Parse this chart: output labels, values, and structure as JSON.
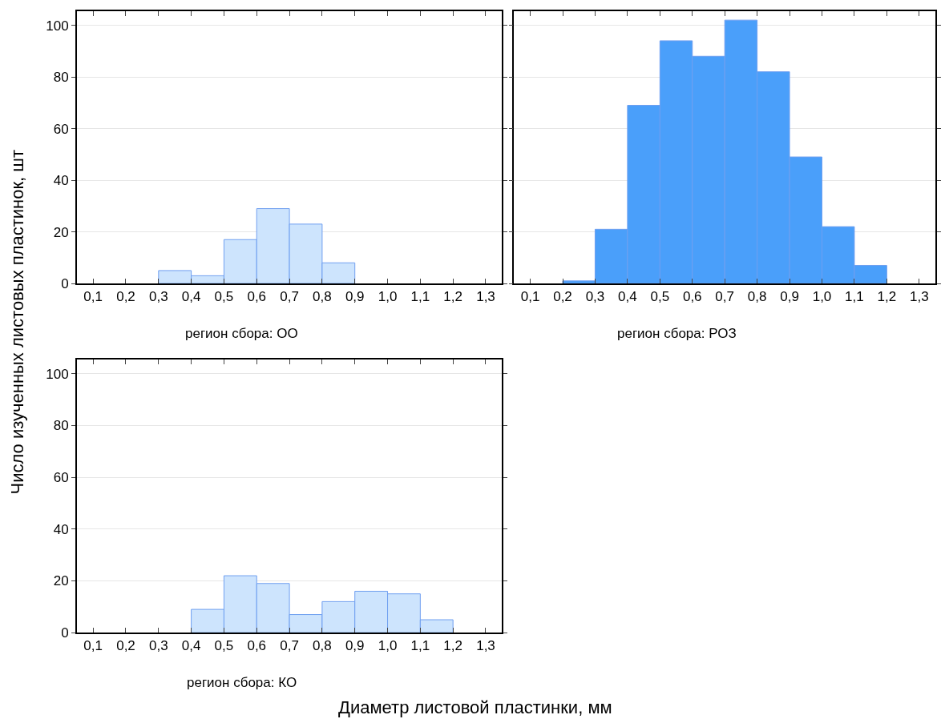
{
  "chart_data": [
    {
      "type": "histogram",
      "title": "регион сбора: ОО",
      "ylabel": "Число изученных листовых пластинок, шт",
      "bins": [
        0.3,
        0.4,
        0.5,
        0.6,
        0.7,
        0.8,
        0.9
      ],
      "values": [
        5,
        3,
        17,
        29,
        23,
        8
      ],
      "color": "#cde4fd",
      "xlim": [
        0.05,
        1.35
      ],
      "ylim": [
        0,
        105.5
      ],
      "xticks": [
        {
          "value": 0.1,
          "label": "0,1"
        },
        {
          "value": 0.2,
          "label": "0,2"
        },
        {
          "value": 0.3,
          "label": "0,3"
        },
        {
          "value": 0.4,
          "label": "0,4"
        },
        {
          "value": 0.5,
          "label": "0,5"
        },
        {
          "value": 0.6,
          "label": "0,6"
        },
        {
          "value": 0.7,
          "label": "0,7"
        },
        {
          "value": 0.8,
          "label": "0,8"
        },
        {
          "value": 0.9,
          "label": "0,9"
        },
        {
          "value": 1.0,
          "label": "1,0"
        },
        {
          "value": 1.1,
          "label": "1,1"
        },
        {
          "value": 1.2,
          "label": "1,2"
        },
        {
          "value": 1.3,
          "label": "1,3"
        }
      ],
      "yticks": [
        0,
        20,
        40,
        60,
        80,
        100
      ],
      "grid": "y"
    },
    {
      "type": "histogram",
      "title": "регион сбора: РОЗ",
      "bins": [
        0.2,
        0.3,
        0.4,
        0.5,
        0.6,
        0.7,
        0.8,
        0.9,
        1.0,
        1.1,
        1.2
      ],
      "values": [
        1,
        21,
        69,
        94,
        88,
        102,
        82,
        49,
        22,
        7
      ],
      "color": "#4a9ffa",
      "xlim": [
        0.05,
        1.35
      ],
      "ylim": [
        0,
        105.5
      ],
      "xticks": [
        {
          "value": 0.1,
          "label": "0,1"
        },
        {
          "value": 0.2,
          "label": "0,2"
        },
        {
          "value": 0.3,
          "label": "0,3"
        },
        {
          "value": 0.4,
          "label": "0,4"
        },
        {
          "value": 0.5,
          "label": "0,5"
        },
        {
          "value": 0.6,
          "label": "0,6"
        },
        {
          "value": 0.7,
          "label": "0,7"
        },
        {
          "value": 0.8,
          "label": "0,8"
        },
        {
          "value": 0.9,
          "label": "0,9"
        },
        {
          "value": 1.0,
          "label": "1,0"
        },
        {
          "value": 1.1,
          "label": "1,1"
        },
        {
          "value": 1.2,
          "label": "1,2"
        },
        {
          "value": 1.3,
          "label": "1,3"
        }
      ],
      "yticks": [
        0,
        20,
        40,
        60,
        80,
        100
      ],
      "grid": "y",
      "tick_labels": "x"
    },
    {
      "type": "histogram",
      "title": "регион сбора: КО",
      "xlabel": "Диаметр листовой пластинки, мм",
      "bins": [
        0.4,
        0.5,
        0.6,
        0.7,
        0.8,
        0.9,
        1.0,
        1.1,
        1.2
      ],
      "values": [
        9,
        22,
        19,
        7,
        12,
        16,
        15,
        5
      ],
      "color": "#cde4fd",
      "xlim": [
        0.05,
        1.35
      ],
      "ylim": [
        0,
        105.5
      ],
      "xticks": [
        {
          "value": 0.1,
          "label": "0,1"
        },
        {
          "value": 0.2,
          "label": "0,2"
        },
        {
          "value": 0.3,
          "label": "0,3"
        },
        {
          "value": 0.4,
          "label": "0,4"
        },
        {
          "value": 0.5,
          "label": "0,5"
        },
        {
          "value": 0.6,
          "label": "0,6"
        },
        {
          "value": 0.7,
          "label": "0,7"
        },
        {
          "value": 0.8,
          "label": "0,8"
        },
        {
          "value": 0.9,
          "label": "0,9"
        },
        {
          "value": 1.0,
          "label": "1,0"
        },
        {
          "value": 1.1,
          "label": "1,1"
        },
        {
          "value": 1.2,
          "label": "1,2"
        },
        {
          "value": 1.3,
          "label": "1,3"
        }
      ],
      "yticks": [
        0,
        20,
        40,
        60,
        80,
        100
      ],
      "grid": "y"
    }
  ]
}
